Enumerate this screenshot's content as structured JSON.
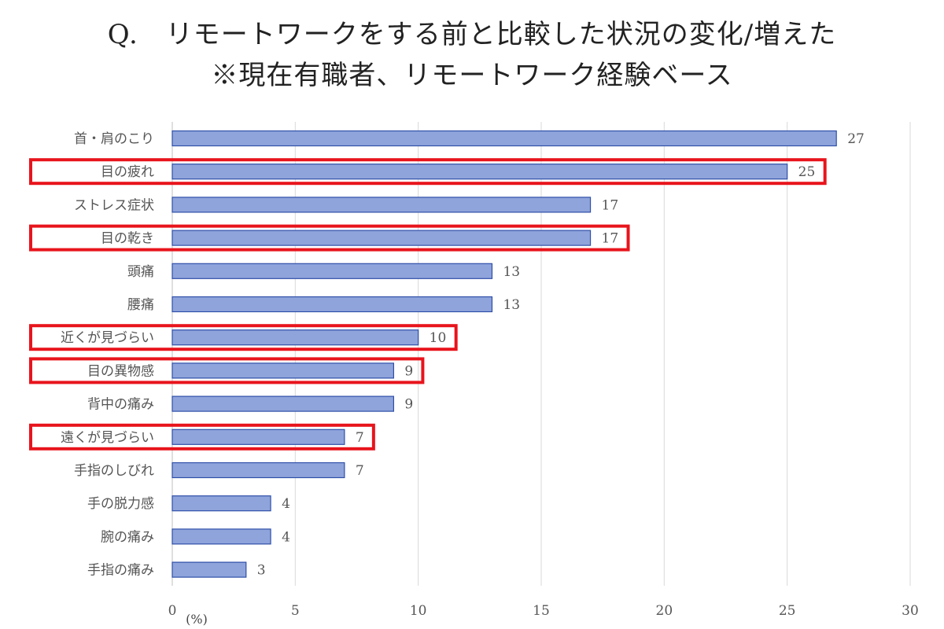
{
  "title": {
    "line1": "Q.　リモートワークをする前と比較した状況の変化/増えた",
    "line2": "※現在有職者、リモートワーク経験ベース"
  },
  "chart_data": {
    "type": "bar",
    "orientation": "horizontal",
    "categories": [
      "首・肩のこり",
      "目の疲れ",
      "ストレス症状",
      "目の乾き",
      "頭痛",
      "腰痛",
      "近くが見づらい",
      "目の異物感",
      "背中の痛み",
      "遠くが見づらい",
      "手指のしびれ",
      "手の脱力感",
      "腕の痛み",
      "手指の痛み"
    ],
    "values": [
      27,
      25,
      17,
      17,
      13,
      13,
      10,
      9,
      9,
      7,
      7,
      4,
      4,
      3
    ],
    "highlighted": [
      "目の疲れ",
      "目の乾き",
      "近くが見づらい",
      "目の異物感",
      "遠くが見づらい"
    ],
    "xlim": [
      0,
      30
    ],
    "xticks": [
      0,
      5,
      10,
      15,
      20,
      25,
      30
    ],
    "unit_label": "(%)",
    "grid": true,
    "bar_color": "#8fa4db",
    "bar_edge_color": "#2f4fa8",
    "highlight_color": "#e8141c",
    "grid_color": "#d9d9d9"
  }
}
